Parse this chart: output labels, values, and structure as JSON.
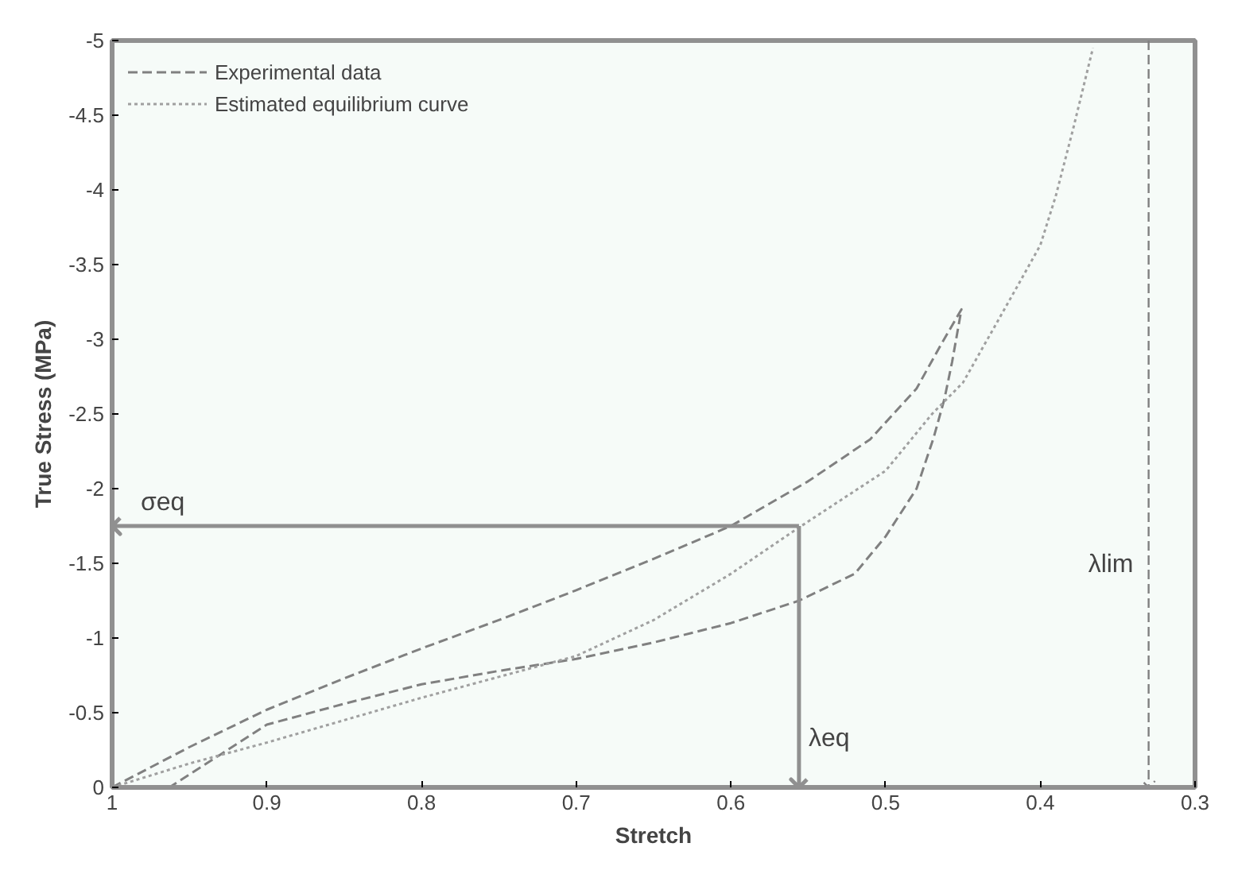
{
  "chart_data": {
    "type": "line",
    "xlabel": "Stretch",
    "ylabel": "True Stress (MPa)",
    "xlim": [
      1,
      0.3
    ],
    "ylim": [
      0,
      -5
    ],
    "xticks": [
      1,
      0.9,
      0.8,
      0.7,
      0.6,
      0.5,
      0.4,
      0.3
    ],
    "yticks": [
      0,
      -0.5,
      -1,
      -1.5,
      -2,
      -2.5,
      -3,
      -3.5,
      -4,
      -4.5,
      -5
    ],
    "grid": false,
    "legend": "top left",
    "marker": "none",
    "series": [
      {
        "name": "Experimental data",
        "color": "#808080",
        "line_style": "dashed",
        "x": [
          1,
          0.95,
          0.9,
          0.85,
          0.8,
          0.75,
          0.7,
          0.65,
          0.6,
          0.55,
          0.51,
          0.48,
          0.465,
          0.451,
          0.457,
          0.462,
          0.469,
          0.48,
          0.5,
          0.52,
          0.556,
          0.6,
          0.65,
          0.7,
          0.75,
          0.8,
          0.85,
          0.9,
          0.93,
          0.963
        ],
        "values": [
          0,
          -0.27,
          -0.52,
          -0.73,
          -0.93,
          -1.12,
          -1.32,
          -1.53,
          -1.75,
          -2.05,
          -2.33,
          -2.67,
          -2.95,
          -3.2,
          -2.85,
          -2.6,
          -2.34,
          -2.0,
          -1.68,
          -1.43,
          -1.25,
          -1.1,
          -0.97,
          -0.86,
          -0.78,
          -0.69,
          -0.56,
          -0.42,
          -0.22,
          0
        ]
      },
      {
        "name": "Estimated equilibrium curve",
        "color": "#a0a0a0",
        "line_style": "dotted",
        "x": [
          1,
          0.95,
          0.9,
          0.85,
          0.8,
          0.75,
          0.7,
          0.65,
          0.6,
          0.556,
          0.5,
          0.47,
          0.45,
          0.42,
          0.4,
          0.39,
          0.379,
          0.366
        ],
        "values": [
          0,
          -0.16,
          -0.3,
          -0.45,
          -0.6,
          -0.74,
          -0.88,
          -1.12,
          -1.43,
          -1.74,
          -2.12,
          -2.5,
          -2.71,
          -3.26,
          -3.63,
          -3.96,
          -4.4,
          -4.95
        ]
      }
    ],
    "ref_lines": [
      {
        "axis": "x",
        "value": 0.33,
        "label": "λlim",
        "line_style": "dashed",
        "color": "#808080"
      },
      {
        "axis": "y",
        "value": -1.75,
        "label": "σeq",
        "line_style": "solid",
        "color": "#909090"
      },
      {
        "axis": "x",
        "value": 0.556,
        "label": "λeq",
        "line_style": "solid",
        "color": "#909090"
      }
    ]
  }
}
